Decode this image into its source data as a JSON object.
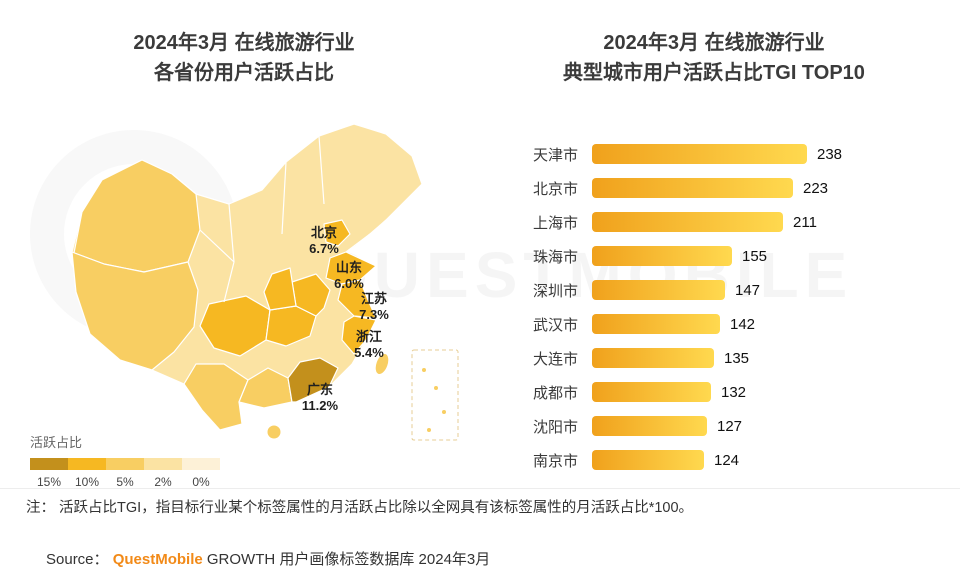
{
  "watermark": "QUESTMOBILE",
  "left_chart": {
    "title_line1": "2024年3月 在线旅游行业",
    "title_line2": "各省份用户活跃占比"
  },
  "right_chart": {
    "title_line1": "2024年3月 在线旅游行业",
    "title_line2": "典型城市用户活跃占比TGI TOP10"
  },
  "chart_data": [
    {
      "type": "heatmap",
      "subtype": "china-province-choropleth",
      "title": "2024年3月 在线旅游行业 各省份用户活跃占比",
      "legend": {
        "title": "活跃占比",
        "stops": [
          {
            "label": "15%",
            "color": "#C3901C"
          },
          {
            "label": "10%",
            "color": "#F6B822"
          },
          {
            "label": "5%",
            "color": "#F8CE62"
          },
          {
            "label": "2%",
            "color": "#FBE3A3"
          },
          {
            "label": "0%",
            "color": "#FDF1D7"
          }
        ]
      },
      "labeled_regions": [
        {
          "region": "北京",
          "value": "6.7%"
        },
        {
          "region": "山东",
          "value": "6.0%"
        },
        {
          "region": "江苏",
          "value": "7.3%"
        },
        {
          "region": "浙江",
          "value": "5.4%"
        },
        {
          "region": "广东",
          "value": "11.2%"
        }
      ]
    },
    {
      "type": "bar",
      "orientation": "horizontal",
      "title": "2024年3月 在线旅游行业 典型城市用户活跃占比TGI TOP10",
      "categories": [
        "天津市",
        "北京市",
        "上海市",
        "珠海市",
        "深圳市",
        "武汉市",
        "大连市",
        "成都市",
        "沈阳市",
        "南京市"
      ],
      "values": [
        238,
        223,
        211,
        155,
        147,
        142,
        135,
        132,
        127,
        124
      ],
      "xlim": [
        0,
        260
      ],
      "bar_colors": [
        "#F0A11C",
        "#FFD94F"
      ]
    }
  ],
  "footer": {
    "note": "注：  活跃占比TGI，指目标行业某个标签属性的月活跃占比除以全网具有该标签属性的月活跃占比*100。",
    "source_prefix": "Source：",
    "source_brand": "QuestMobile",
    "source_suffix": " GROWTH 用户画像标签数据库 2024年3月",
    "brand_color": "#F28A18"
  }
}
